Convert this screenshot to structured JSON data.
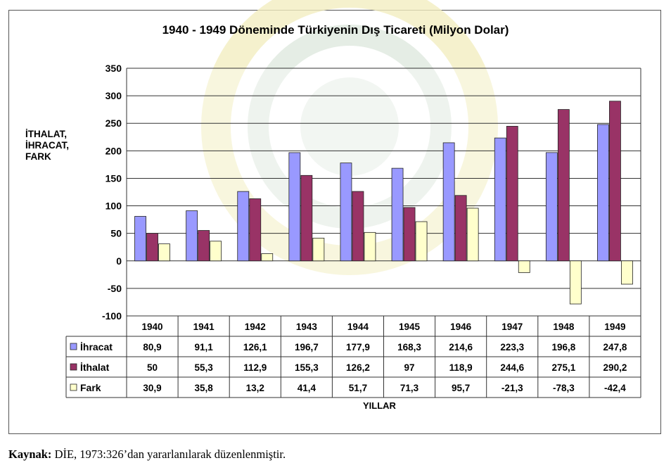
{
  "chart_data": {
    "type": "bar",
    "title": "1940 - 1949  Döneminde Türkiyenin Dış Ticareti (Milyon Dolar)",
    "ylabel_lines": [
      "İTHALAT,",
      "İHRACAT,",
      "FARK"
    ],
    "xlabel": "YILLAR",
    "ylim": [
      -100,
      350
    ],
    "yticks": [
      350,
      300,
      250,
      200,
      150,
      100,
      50,
      0,
      -50,
      -100
    ],
    "grid": true,
    "legend": "data table (left)",
    "categories": [
      "1940",
      "1941",
      "1942",
      "1943",
      "1944",
      "1945",
      "1946",
      "1947",
      "1948",
      "1949"
    ],
    "series": [
      {
        "name": "İhracat",
        "color": "#9999ff",
        "values": [
          80.9,
          91.1,
          126.1,
          196.7,
          177.9,
          168.3,
          214.6,
          223.3,
          196.8,
          247.8
        ],
        "labels": [
          "80,9",
          "91,1",
          "126,1",
          "196,7",
          "177,9",
          "168,3",
          "214,6",
          "223,3",
          "196,8",
          "247,8"
        ]
      },
      {
        "name": "İthalat",
        "color": "#993366",
        "values": [
          50,
          55.3,
          112.9,
          155.3,
          126.2,
          97,
          118.9,
          244.6,
          275.1,
          290.2
        ],
        "labels": [
          "50",
          "55,3",
          "112,9",
          "155,3",
          "126,2",
          "97",
          "118,9",
          "244,6",
          "275,1",
          "290,2"
        ]
      },
      {
        "name": "Fark",
        "color": "#ffffcc",
        "values": [
          30.9,
          35.8,
          13.2,
          41.4,
          51.7,
          71.3,
          95.7,
          -21.3,
          -78.3,
          -42.4
        ],
        "labels": [
          "30,9",
          "35,8",
          "13,2",
          "41,4",
          "51,7",
          "71,3",
          "95,7",
          "-21,3",
          "-78,3",
          "-42,4"
        ]
      }
    ]
  },
  "source": {
    "label": "Kaynak:",
    "text": " DİE, 1973:326’dan yararlanılarak düzenlenmiştir."
  }
}
